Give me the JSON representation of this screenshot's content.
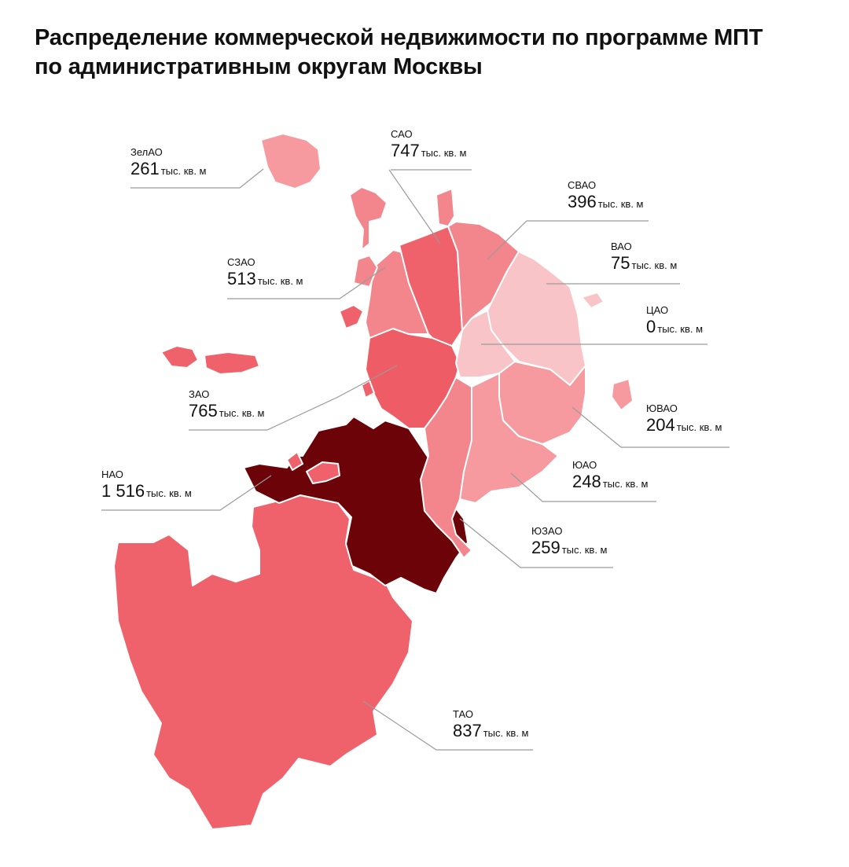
{
  "title_line1": "Распределение коммерческой недвижимости по программе МПТ",
  "title_line2": "по административным округам Москвы",
  "unit": "тыс. кв. м",
  "colors": {
    "level_1": "#f8c4c8",
    "level_2": "#f69aa0",
    "level_3": "#f3858c",
    "level_4": "#f0626b",
    "level_5": "#ee5c65",
    "level_max": "#6b0308",
    "leader": "#9a9a9a"
  },
  "districts": [
    {
      "id": "zelao",
      "name": "ЗелАО",
      "value": "261"
    },
    {
      "id": "sao",
      "name": "САО",
      "value": "747"
    },
    {
      "id": "svao",
      "name": "СВАО",
      "value": "396"
    },
    {
      "id": "vao",
      "name": "ВАО",
      "value": "75"
    },
    {
      "id": "szao",
      "name": "СЗАО",
      "value": "513"
    },
    {
      "id": "cao",
      "name": "ЦАО",
      "value": "0"
    },
    {
      "id": "zao",
      "name": "ЗАО",
      "value": "765"
    },
    {
      "id": "yuvao",
      "name": "ЮВАО",
      "value": "204"
    },
    {
      "id": "nao",
      "name": "НАО",
      "value": "1 516"
    },
    {
      "id": "yuao",
      "name": "ЮАО",
      "value": "248"
    },
    {
      "id": "yuzao",
      "name": "ЮЗАО",
      "value": "259"
    },
    {
      "id": "tao",
      "name": "ТАО",
      "value": "837"
    }
  ]
}
